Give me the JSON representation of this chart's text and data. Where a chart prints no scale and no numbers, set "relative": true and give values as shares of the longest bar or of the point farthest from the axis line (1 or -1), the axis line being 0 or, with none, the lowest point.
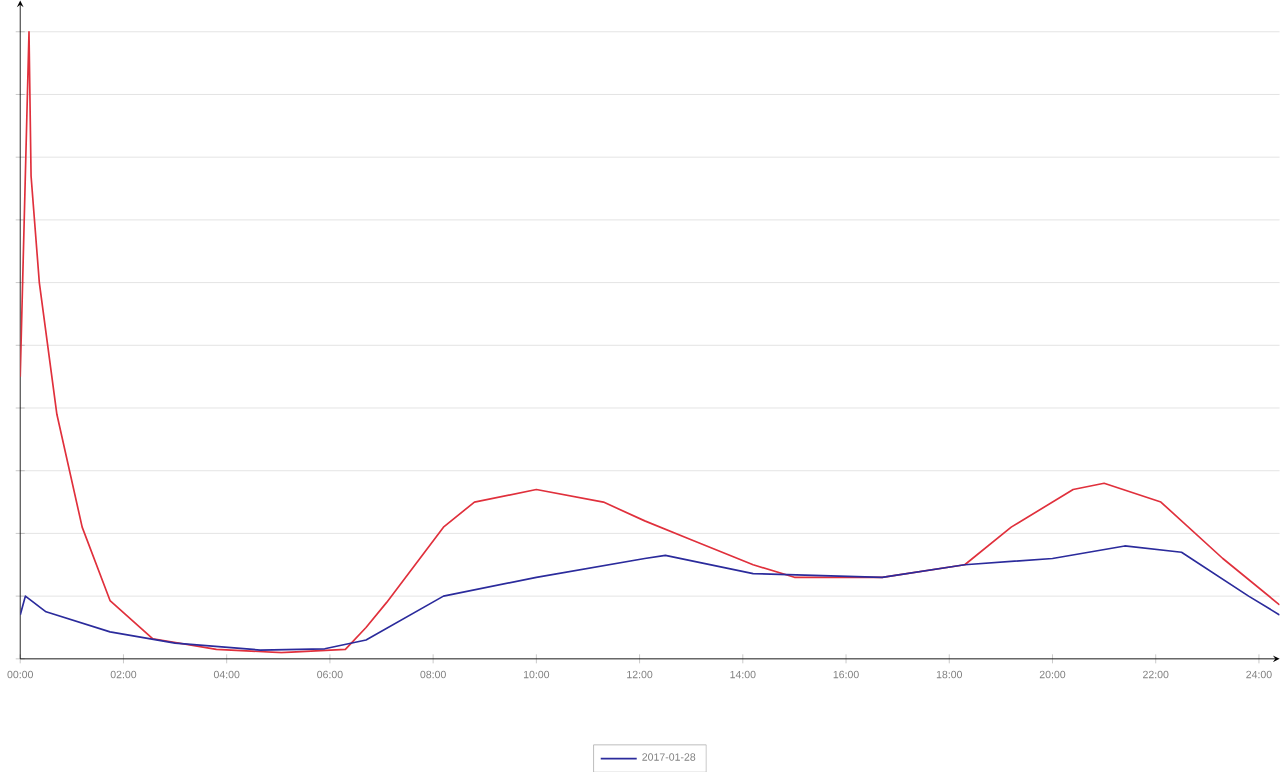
{
  "chart_data": {
    "type": "line",
    "relative": true,
    "grid": "y",
    "legend": "bottom",
    "xlim": [
      0,
      24.4
    ],
    "xticks": [
      {
        "value": 0,
        "label": "00:00"
      },
      {
        "value": 2,
        "label": "02:00"
      },
      {
        "value": 4,
        "label": "04:00"
      },
      {
        "value": 6,
        "label": "06:00"
      },
      {
        "value": 8,
        "label": "08:00"
      },
      {
        "value": 10,
        "label": "10:00"
      },
      {
        "value": 12,
        "label": "12:00"
      },
      {
        "value": 14,
        "label": "14:00"
      },
      {
        "value": 16,
        "label": "16:00"
      },
      {
        "value": 18,
        "label": "18:00"
      },
      {
        "value": 20,
        "label": "20:00"
      },
      {
        "value": 22,
        "label": "22:00"
      },
      {
        "value": 24,
        "label": "24:00"
      }
    ],
    "series": [
      {
        "color": "#e0303c",
        "x": [
          0.0,
          0.17,
          0.21,
          0.37,
          0.71,
          1.2,
          1.74,
          2.57,
          3.8,
          5.06,
          6.3,
          6.7,
          7.1,
          8.2,
          8.8,
          10.0,
          11.3,
          12.1,
          13.0,
          14.2,
          15.0,
          16.7,
          18.3,
          19.2,
          20.4,
          21.0,
          22.1,
          23.3,
          24.4
        ],
        "values": [
          0.45,
          1.0,
          0.77,
          0.6,
          0.39,
          0.21,
          0.093,
          0.032,
          0.015,
          0.01,
          0.015,
          0.05,
          0.09,
          0.21,
          0.25,
          0.27,
          0.25,
          0.22,
          0.19,
          0.15,
          0.13,
          0.13,
          0.15,
          0.21,
          0.27,
          0.28,
          0.25,
          0.16,
          0.086
        ]
      },
      {
        "name": "2017-01-28",
        "color": "#2b2b9c",
        "x": [
          0.0,
          0.1,
          0.5,
          1.74,
          3.0,
          4.65,
          5.9,
          6.7,
          8.2,
          10.0,
          12.1,
          12.5,
          14.2,
          16.7,
          18.3,
          20.0,
          21.4,
          22.5,
          23.8,
          24.4
        ],
        "values": [
          0.07,
          0.1,
          0.075,
          0.043,
          0.025,
          0.014,
          0.016,
          0.03,
          0.1,
          0.13,
          0.16,
          0.165,
          0.136,
          0.13,
          0.15,
          0.16,
          0.18,
          0.17,
          0.1,
          0.07
        ]
      }
    ]
  }
}
